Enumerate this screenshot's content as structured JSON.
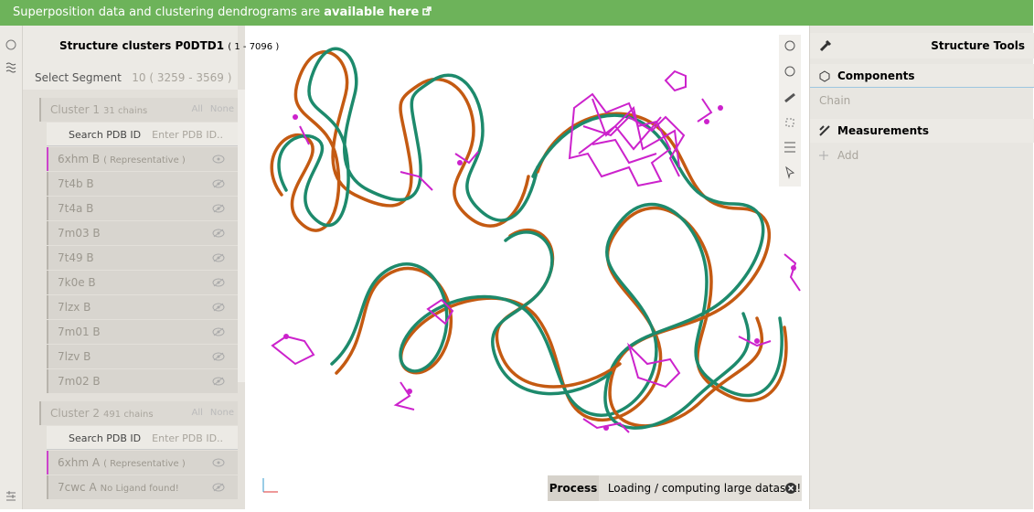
{
  "banner": {
    "text": "Superposition data and clustering dendrograms are",
    "link": "available here"
  },
  "left_panel": {
    "title": "Structure clusters P0DTD1",
    "range": "( 1 - 7096 )",
    "select_label": "Select Segment",
    "segment": "10 ( 3259 - 3569 )",
    "clusters": [
      {
        "name": "Cluster 1",
        "count": "31 chains",
        "all": "All",
        "none": "None",
        "search_label": "Search PDB ID",
        "placeholder": "Enter PDB ID..",
        "chains": [
          {
            "id": "6xhm B",
            "note": "( Representative )"
          },
          {
            "id": "7t4b B"
          },
          {
            "id": "7t4a B"
          },
          {
            "id": "7m03 B"
          },
          {
            "id": "7t49 B"
          },
          {
            "id": "7k0e B"
          },
          {
            "id": "7lzx B"
          },
          {
            "id": "7m01 B"
          },
          {
            "id": "7lzv B"
          },
          {
            "id": "7m02 B"
          }
        ]
      },
      {
        "name": "Cluster 2",
        "count": "491 chains",
        "all": "All",
        "none": "None",
        "search_label": "Search PDB ID",
        "placeholder": "Enter PDB ID..",
        "chains": [
          {
            "id": "6xhm A",
            "note": "( Representative )"
          },
          {
            "id": "7cwc A",
            "note": "No Ligand found!"
          }
        ]
      }
    ]
  },
  "right_panel": {
    "title": "Structure Tools",
    "components": "Components",
    "chain": "Chain",
    "measurements": "Measurements",
    "add": "Add"
  },
  "status": {
    "label": "Process",
    "message": "Loading / computing large dataset!"
  }
}
